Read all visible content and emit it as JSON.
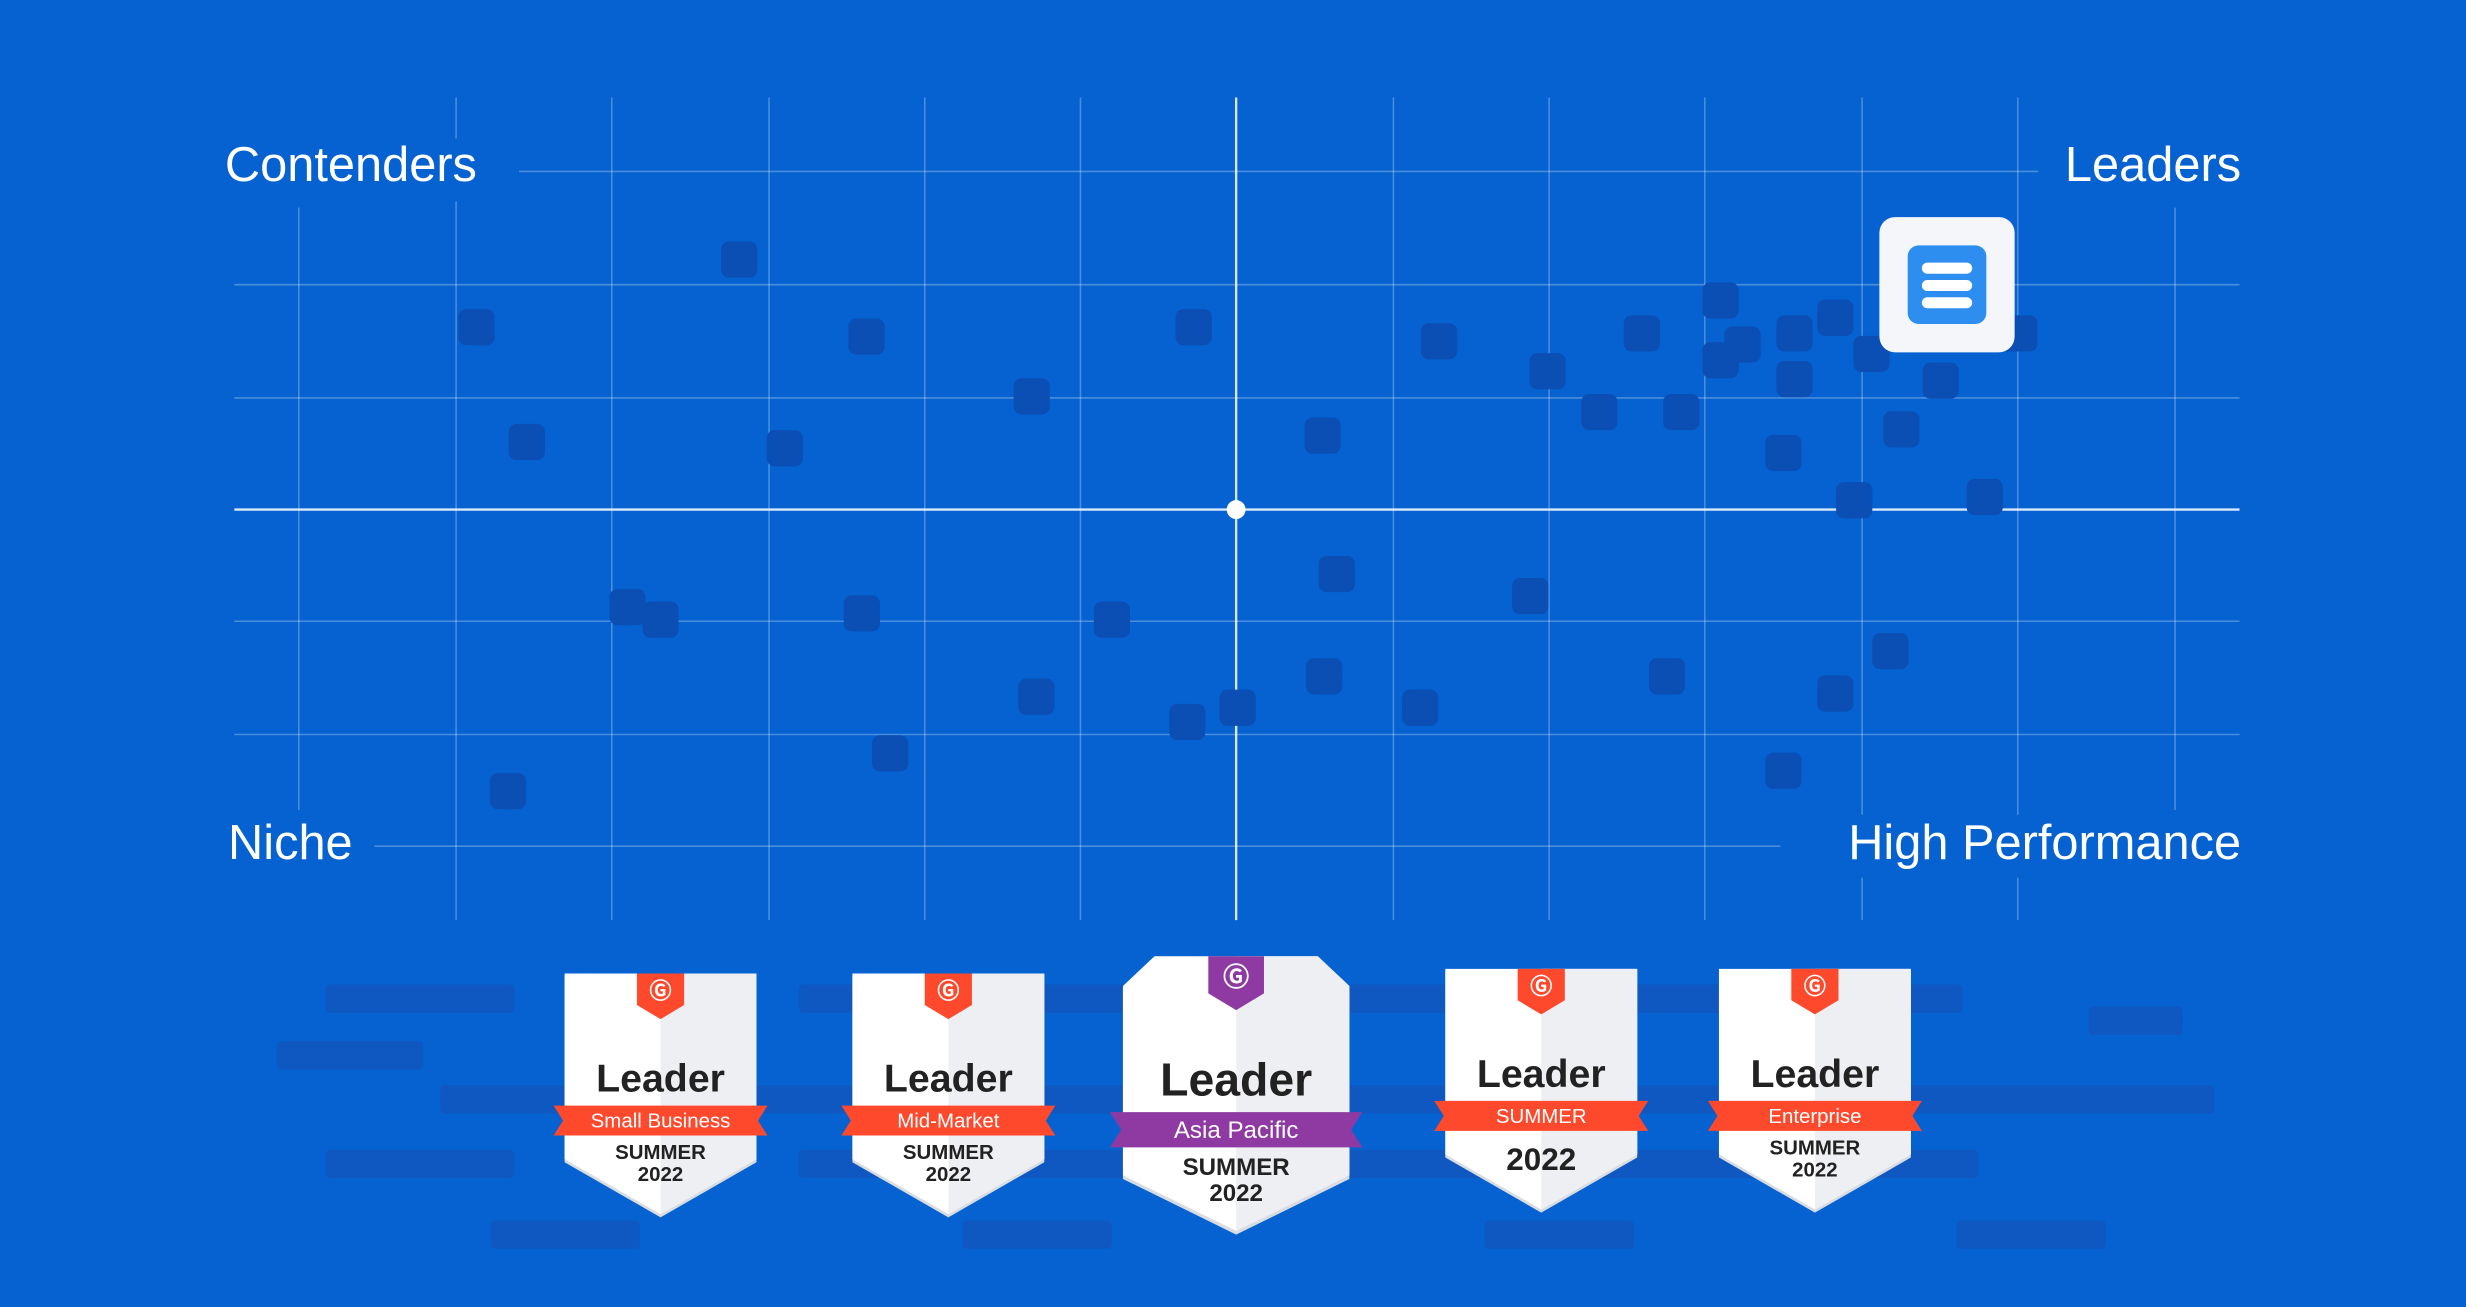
{
  "quadrants": {
    "top_left": "Contenders",
    "top_right": "Leaders",
    "bottom_left": "Niche",
    "bottom_right": "High Performance"
  },
  "badges": [
    {
      "title": "Leader",
      "ribbon": "Small Business",
      "footer": [
        "SUMMER",
        "2022"
      ],
      "color": "#ff492c"
    },
    {
      "title": "Leader",
      "ribbon": "Mid-Market",
      "footer": [
        "SUMMER",
        "2022"
      ],
      "color": "#ff492c"
    },
    {
      "title": "Leader",
      "ribbon": "Asia Pacific",
      "footer": [
        "SUMMER",
        "2022"
      ],
      "color": "#8e3aa2"
    },
    {
      "title": "Leader",
      "ribbon": "SUMMER",
      "footer": [
        "2022"
      ],
      "color": "#ff492c"
    },
    {
      "title": "Leader",
      "ribbon": "Enterprise",
      "footer": [
        "SUMMER",
        "2022"
      ],
      "color": "#ff492c"
    }
  ]
}
